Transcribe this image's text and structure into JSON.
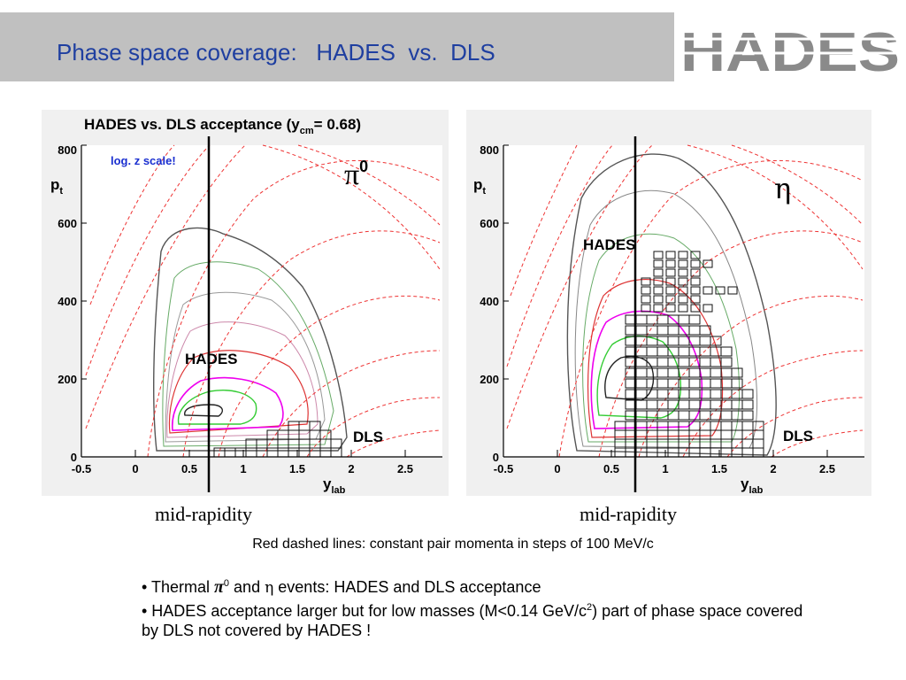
{
  "header": {
    "title": "Phase space coverage:   HADES  vs.  DLS",
    "logo_text": "HADES"
  },
  "plots": {
    "main_title": "HADES vs. DLS acceptance  (y",
    "main_title_sub": "cm",
    "main_title_tail": "= 0.68)",
    "y_axis_label": "p",
    "y_axis_label_sub": "t",
    "x_axis_label": "y",
    "x_axis_label_sub": "lab",
    "x_ticks": [
      "-0.5",
      "0",
      "0.5",
      "1",
      "1.5",
      "2",
      "2.5"
    ],
    "y_ticks": [
      "0",
      "200",
      "400",
      "600",
      "800"
    ],
    "log_note": "log. z scale!",
    "left": {
      "particle": "π",
      "particle_sup": "0",
      "label_hades": "HADES",
      "label_dls": "DLS"
    },
    "right": {
      "particle": "η",
      "label_hades": "HADES",
      "label_dls": "DLS"
    }
  },
  "mid_rapidity": [
    "mid-rapidity",
    "mid-rapidity"
  ],
  "caption": "Red dashed lines: constant pair momenta in steps of 100 MeV/c",
  "bullets": {
    "b1_prefix": "•  Thermal ",
    "b1_pi": "π",
    "b1_pi_sup": "0",
    "b1_and": " and ",
    "b1_eta": "η",
    "b1_suffix": " events: HADES and DLS acceptance",
    "b2_prefix": "• HADES acceptance larger but for low masses (M<0.14 GeV/c",
    "b2_sup": "2",
    "b2_suffix": ")  part of phase space covered by DLS not covered by HADES !"
  }
}
